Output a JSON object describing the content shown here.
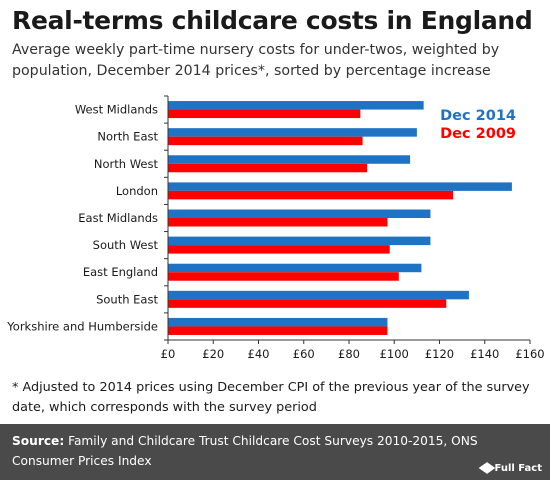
{
  "title": "Real-terms childcare costs in England",
  "subtitle": "Average weekly part-time nursery costs for under-twos, weighted by population, December 2014 prices*, sorted by percentage increase",
  "footnote": "* Adjusted to 2014 prices using December CPI of the previous year of the survey date, which corresponds with the survey period",
  "source": {
    "label": "Source:",
    "text": "Family and Childcare Trust Childcare Cost Surveys 2010-2015, ONS Consumer Prices Index"
  },
  "brand": "Full Fact",
  "colors": {
    "dec2014": "#1f73c4",
    "dec2009": "#ff0000",
    "axis": "#333333",
    "background": "#ffffff"
  },
  "chart_data": {
    "type": "bar",
    "orientation": "horizontal",
    "title": "Real-terms childcare costs in England",
    "xlabel": "",
    "ylabel": "",
    "xlim": [
      0,
      160
    ],
    "ticks": [
      0,
      20,
      40,
      60,
      80,
      100,
      120,
      140,
      160
    ],
    "tick_labels": [
      "£0",
      "£20",
      "£40",
      "£60",
      "£80",
      "£100",
      "£120",
      "£140",
      "£160"
    ],
    "grid": false,
    "legend_position": "top-right",
    "categories": [
      "West Midlands",
      "North East",
      "North West",
      "London",
      "East Midlands",
      "South West",
      "East England",
      "South East",
      "Yorkshire and Humberside"
    ],
    "series": [
      {
        "name": "Dec 2014",
        "color": "#1f73c4",
        "values": [
          113,
          110,
          107,
          152,
          116,
          116,
          112,
          133,
          97
        ]
      },
      {
        "name": "Dec 2009",
        "color": "#ff0000",
        "values": [
          85,
          86,
          88,
          126,
          97,
          98,
          102,
          123,
          97
        ]
      }
    ]
  }
}
